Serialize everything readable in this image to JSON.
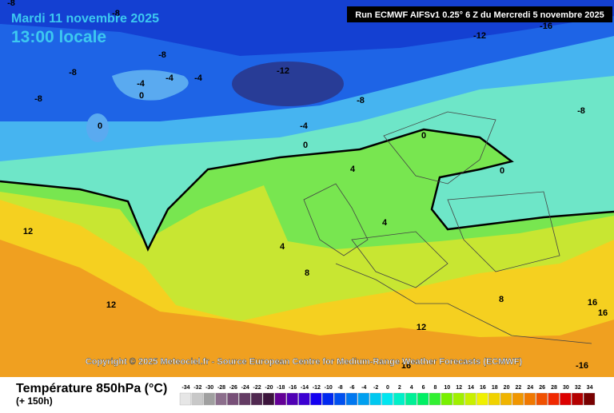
{
  "header": {
    "date": "Mardi 11 novembre 2025",
    "time": "13:00 locale",
    "run": "Run ECMWF AIFSv1 0.25° 6 Z du Mercredi 5 novembre 2025"
  },
  "map": {
    "copyright": "Copyright © 2025 Meteociel.fr - Source European Centre for Medium-Range Weather Forecasts (ECMWF)",
    "contour_labels": [
      -8,
      -8,
      -16,
      -12,
      -8,
      -8,
      -4,
      -4,
      -4,
      -12,
      0,
      -8,
      -8,
      -8,
      -4,
      0,
      0,
      0,
      0,
      4,
      4,
      12,
      4,
      8,
      8,
      12,
      16,
      16,
      12,
      16,
      -16
    ]
  },
  "legend": {
    "title": "Température 850hPa (°C)",
    "lead": "(+ 150h)",
    "values": [
      -34,
      -32,
      -30,
      -28,
      -26,
      -24,
      -22,
      -20,
      -18,
      -16,
      -14,
      -12,
      -10,
      -8,
      -6,
      -4,
      -2,
      0,
      2,
      4,
      6,
      8,
      10,
      12,
      14,
      16,
      18,
      20,
      22,
      24,
      26,
      28,
      30,
      32,
      34
    ],
    "colors": [
      "#e6e6e6",
      "#c8c8c8",
      "#a0a0a0",
      "#8c6e8c",
      "#785078",
      "#643c64",
      "#502850",
      "#3c143c",
      "#640096",
      "#5000b4",
      "#3c00d2",
      "#1400f0",
      "#0028f0",
      "#0050f0",
      "#0078f0",
      "#00a0f0",
      "#00c8f0",
      "#00e6f0",
      "#00f0c8",
      "#00f096",
      "#00f064",
      "#32f032",
      "#78f000",
      "#a0f000",
      "#c8f000",
      "#f0f000",
      "#f0d200",
      "#f0b400",
      "#f09600",
      "#f07800",
      "#f05000",
      "#f02800",
      "#dc0000",
      "#b40000",
      "#780000"
    ]
  }
}
